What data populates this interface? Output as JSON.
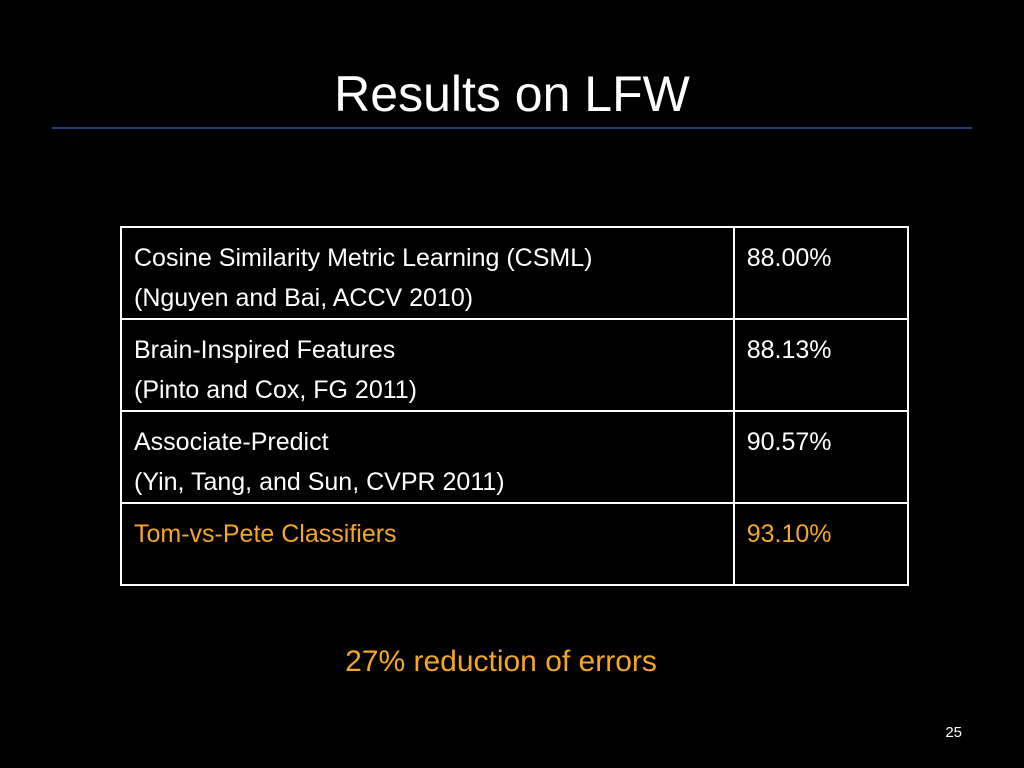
{
  "slide": {
    "title": "Results on LFW",
    "caption": "27% reduction of errors",
    "page_number": "25"
  },
  "results_table": {
    "rows": [
      {
        "method_line1": "Cosine Similarity Metric Learning (CSML)",
        "method_line2": "(Nguyen and Bai, ACCV 2010)",
        "accuracy": "88.00%"
      },
      {
        "method_line1": "Brain-Inspired Features",
        "method_line2": "(Pinto and Cox, FG 2011)",
        "accuracy": "88.13%"
      },
      {
        "method_line1": "Associate-Predict",
        "method_line2": "(Yin, Tang, and Sun, CVPR 2011)",
        "accuracy": "90.57%"
      },
      {
        "method_line1": "Tom-vs-Pete Classifiers",
        "accuracy": "93.10%"
      }
    ]
  },
  "colors": {
    "background": "#000000",
    "text": "#ffffff",
    "highlight": "#f5a623",
    "title_rule": "#24407a"
  }
}
